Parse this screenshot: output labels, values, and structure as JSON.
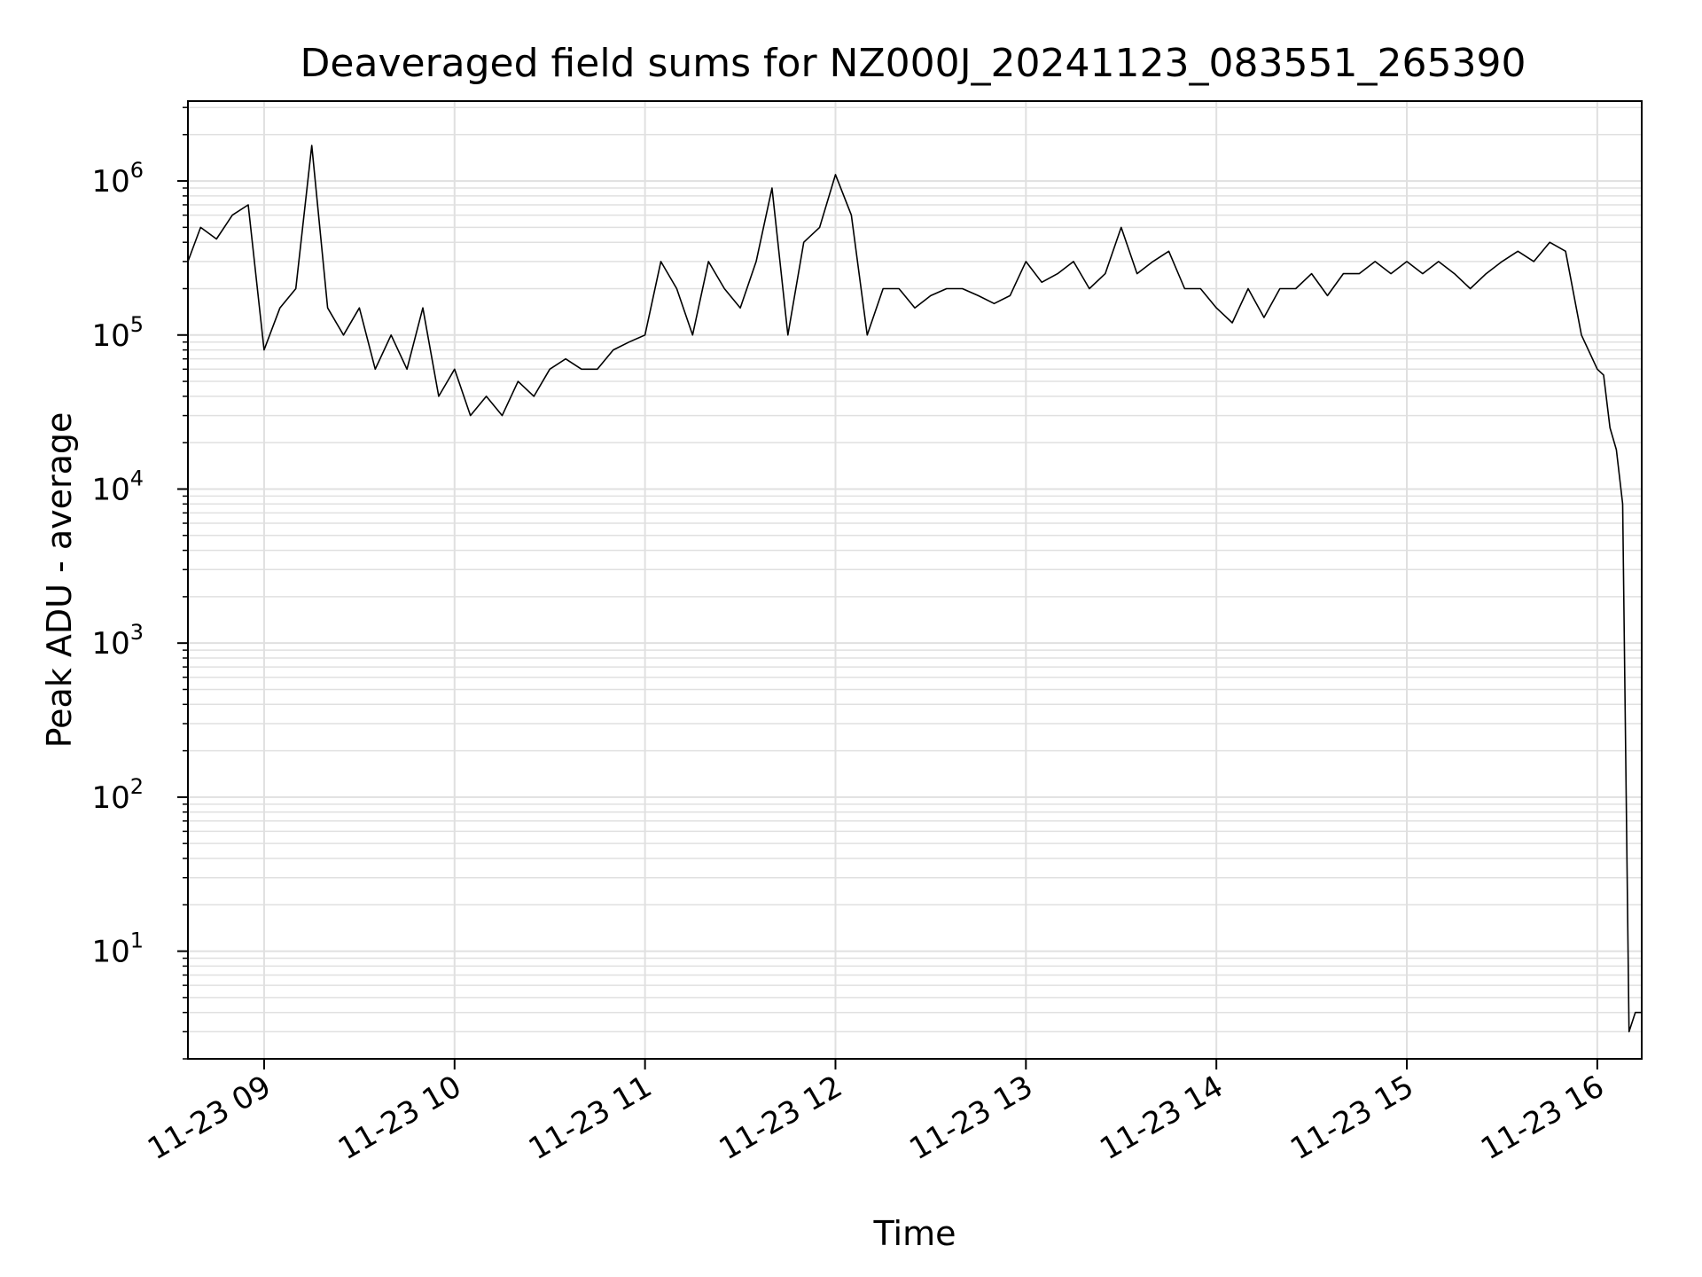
{
  "chart_data": {
    "type": "line",
    "title": "Deaveraged field sums for NZ000J_20241123_083551_265390",
    "xlabel": "Time",
    "ylabel": "Peak ADU - average",
    "yscale": "log",
    "ylim": [
      2,
      3300000
    ],
    "xlim": [
      "11-23 08:36",
      "11-23 16:14"
    ],
    "grid": true,
    "line_color": "#000000",
    "grid_color": "#e0e0e0",
    "x_ticks": [
      "11-23 09",
      "11-23 10",
      "11-23 11",
      "11-23 12",
      "11-23 13",
      "11-23 14",
      "11-23 15",
      "11-23 16"
    ],
    "y_ticks": [
      {
        "base": "10",
        "exp": "1",
        "value": 10
      },
      {
        "base": "10",
        "exp": "2",
        "value": 100
      },
      {
        "base": "10",
        "exp": "3",
        "value": 1000
      },
      {
        "base": "10",
        "exp": "4",
        "value": 10000
      },
      {
        "base": "10",
        "exp": "5",
        "value": 100000
      },
      {
        "base": "10",
        "exp": "6",
        "value": 1000000
      }
    ],
    "series": [
      {
        "x": [
          "08:36",
          "08:40",
          "08:45",
          "08:50",
          "08:55",
          "09:00",
          "09:05",
          "09:10",
          "09:15",
          "09:20",
          "09:25",
          "09:30",
          "09:35",
          "09:40",
          "09:45",
          "09:50",
          "09:55",
          "10:00",
          "10:05",
          "10:10",
          "10:15",
          "10:20",
          "10:25",
          "10:30",
          "10:35",
          "10:40",
          "10:45",
          "10:50",
          "10:55",
          "11:00",
          "11:05",
          "11:10",
          "11:15",
          "11:20",
          "11:25",
          "11:30",
          "11:35",
          "11:40",
          "11:45",
          "11:50",
          "11:55",
          "12:00",
          "12:05",
          "12:10",
          "12:15",
          "12:20",
          "12:25",
          "12:30",
          "12:35",
          "12:40",
          "12:45",
          "12:50",
          "12:55",
          "13:00",
          "13:05",
          "13:10",
          "13:15",
          "13:20",
          "13:25",
          "13:30",
          "13:35",
          "13:40",
          "13:45",
          "13:50",
          "13:55",
          "14:00",
          "14:05",
          "14:10",
          "14:15",
          "14:20",
          "14:25",
          "14:30",
          "14:35",
          "14:40",
          "14:45",
          "14:50",
          "14:55",
          "15:00",
          "15:05",
          "15:10",
          "15:15",
          "15:20",
          "15:25",
          "15:30",
          "15:35",
          "15:40",
          "15:45",
          "15:50",
          "15:55",
          "16:00",
          "16:02",
          "16:04",
          "16:06",
          "16:08",
          "16:10",
          "16:12",
          "16:14"
        ],
        "y": [
          300000,
          500000,
          420000,
          600000,
          700000,
          80000,
          150000,
          200000,
          1700000,
          150000,
          100000,
          150000,
          60000,
          100000,
          60000,
          150000,
          40000,
          60000,
          30000,
          40000,
          30000,
          50000,
          40000,
          60000,
          70000,
          60000,
          60000,
          80000,
          90000,
          100000,
          300000,
          200000,
          100000,
          300000,
          200000,
          150000,
          300000,
          900000,
          100000,
          400000,
          500000,
          1100000,
          600000,
          100000,
          200000,
          200000,
          150000,
          180000,
          200000,
          200000,
          180000,
          160000,
          180000,
          300000,
          220000,
          250000,
          300000,
          200000,
          250000,
          500000,
          250000,
          300000,
          350000,
          200000,
          200000,
          150000,
          120000,
          200000,
          130000,
          200000,
          200000,
          250000,
          180000,
          250000,
          250000,
          300000,
          250000,
          300000,
          250000,
          300000,
          250000,
          200000,
          250000,
          300000,
          350000,
          300000,
          400000,
          350000,
          100000,
          60000,
          55000,
          25000,
          18000,
          8000,
          3,
          4,
          4
        ]
      }
    ]
  }
}
